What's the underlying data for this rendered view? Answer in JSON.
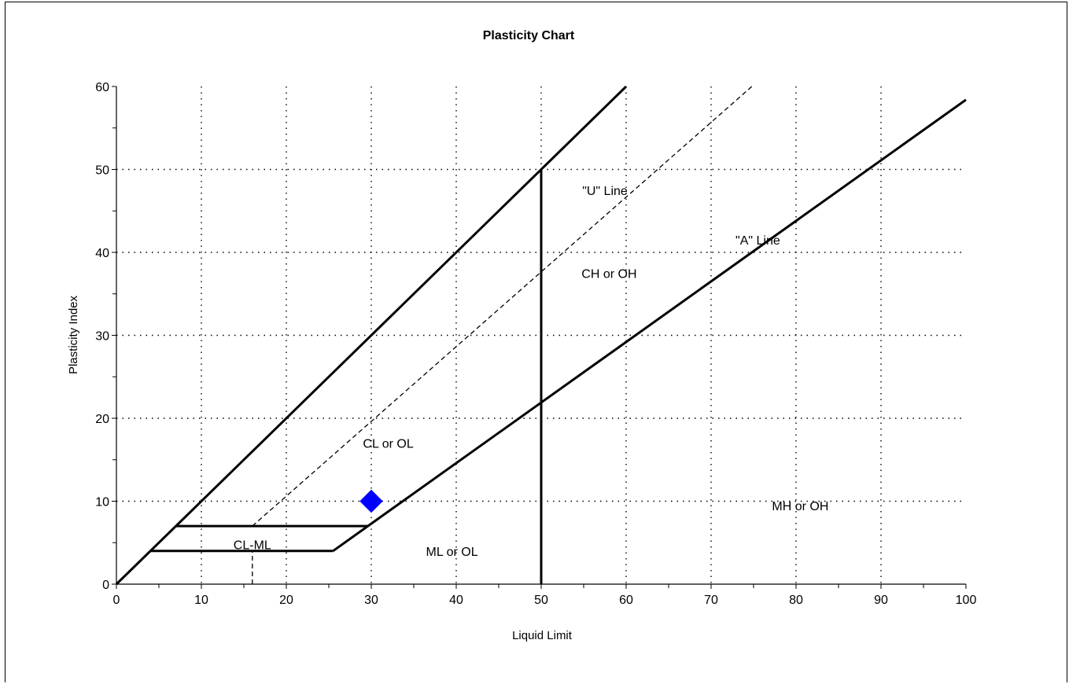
{
  "chart_data": {
    "type": "scatter",
    "title": "Plasticity Chart",
    "xlabel": "Liquid Limit",
    "ylabel": "Plasticity Index",
    "xlim": [
      0,
      100
    ],
    "ylim": [
      0,
      60
    ],
    "xticks": [
      0,
      10,
      20,
      30,
      40,
      50,
      60,
      70,
      80,
      90,
      100
    ],
    "yticks": [
      0,
      10,
      20,
      30,
      40,
      50,
      60
    ],
    "grid": true,
    "points": [
      {
        "x": 30,
        "y": 10,
        "marker": "diamond",
        "color": "#0000ff"
      }
    ],
    "lines": [
      {
        "name": "upper boundary",
        "style": "solid",
        "points": [
          [
            0,
            0
          ],
          [
            60,
            60
          ]
        ]
      },
      {
        "name": "\"U\" Line",
        "style": "dashed",
        "points": [
          [
            16,
            7
          ],
          [
            74.8,
            60
          ]
        ]
      },
      {
        "name": "\"U\" Line lower",
        "style": "dashed",
        "points": [
          [
            16,
            0
          ],
          [
            16,
            4
          ]
        ]
      },
      {
        "name": "\"A\" Line",
        "style": "solid",
        "points": [
          [
            29.6,
            7
          ],
          [
            100,
            58.4
          ]
        ]
      },
      {
        "name": "LL = 50",
        "style": "solid",
        "points": [
          [
            50,
            0
          ],
          [
            50,
            50
          ]
        ]
      },
      {
        "name": "CL-ML top",
        "style": "solid",
        "points": [
          [
            7,
            7
          ],
          [
            29.6,
            7
          ]
        ]
      },
      {
        "name": "CL-ML bottom",
        "style": "solid",
        "points": [
          [
            4,
            4
          ],
          [
            25.5,
            4
          ]
        ]
      },
      {
        "name": "CL-ML right",
        "style": "solid",
        "points": [
          [
            25.5,
            4
          ],
          [
            29.6,
            7
          ]
        ]
      }
    ],
    "annotations": [
      {
        "text": "\"U\" Line",
        "x": 57.5,
        "y": 47.5
      },
      {
        "text": "\"A\" Line",
        "x": 75.5,
        "y": 41.5
      },
      {
        "text": "CH or OH",
        "x": 58,
        "y": 37.5
      },
      {
        "text": "CL or OL",
        "x": 32,
        "y": 17
      },
      {
        "text": "MH or OH",
        "x": 80.5,
        "y": 9.5
      },
      {
        "text": "CL-ML",
        "x": 16,
        "y": 4.8
      },
      {
        "text": "ML or OL",
        "x": 39.5,
        "y": 4
      }
    ]
  }
}
